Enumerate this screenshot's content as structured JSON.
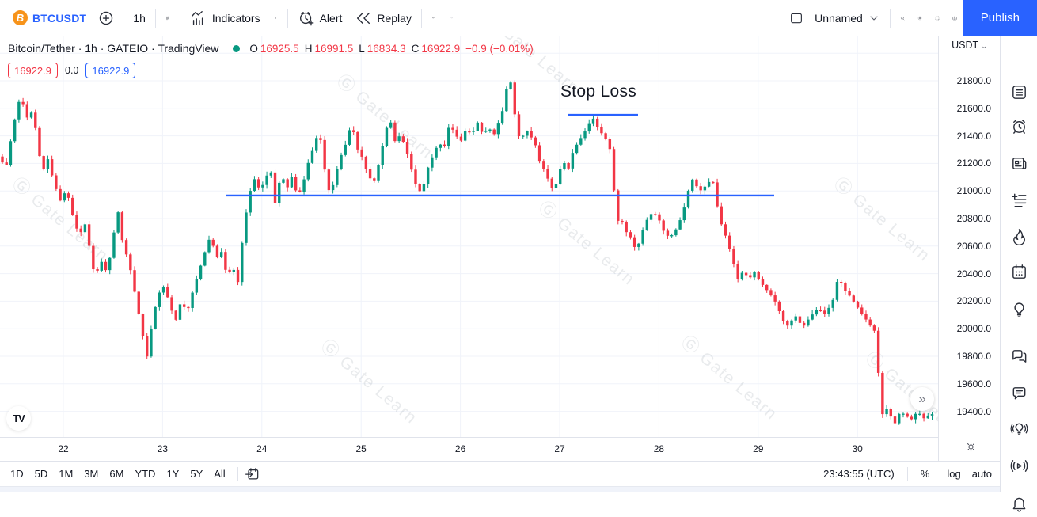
{
  "header": {
    "symbol": "BTCUSDT",
    "interval": "1h",
    "indicators_label": "Indicators",
    "alert_label": "Alert",
    "replay_label": "Replay",
    "layout_name": "Unnamed",
    "publish_label": "Publish",
    "coin_initial": "B"
  },
  "legend": {
    "title": "Bitcoin/Tether · 1h · GATEIO · TradingView",
    "o_label": "O",
    "o": "16925.5",
    "h_label": "H",
    "h": "16991.5",
    "l_label": "L",
    "l": "16834.3",
    "c_label": "C",
    "c": "16922.9",
    "change": "−0.9 (−0.01%)",
    "bid_badge": "16922.9",
    "spread": "0.0",
    "ask_badge": "16922.9"
  },
  "annotation": {
    "stop_loss": "Stop Loss"
  },
  "price_axis": {
    "currency": "USDT"
  },
  "bottom_bar": {
    "ranges": [
      "1D",
      "5D",
      "1M",
      "3M",
      "6M",
      "YTD",
      "1Y",
      "5Y",
      "All"
    ],
    "clock": "23:43:55 (UTC)",
    "percent": "%",
    "log": "log",
    "auto": "auto"
  },
  "sidebar": {
    "icons": [
      "watchlist",
      "alerts",
      "news",
      "text-notes",
      "hotlists",
      "calendar",
      "ideas",
      "chats",
      "private-chat",
      "live-ideas",
      "streams",
      "notifications"
    ],
    "divider_after": "ideas"
  },
  "watermark": {
    "text": "Gate Learn"
  },
  "tv_logo_text": "TV",
  "chart_data": {
    "type": "candlestick",
    "pair": "Bitcoin/Tether",
    "symbol": "BTCUSDT",
    "interval": "1h",
    "exchange": "GATEIO",
    "legend_ohlc": {
      "open": 16925.5,
      "high": 16991.5,
      "low": 16834.3,
      "close": 16922.9,
      "change": -0.9,
      "change_pct": -0.01
    },
    "ylim": [
      19210,
      22110
    ],
    "y_ticks": [
      21800,
      21600,
      21400,
      21200,
      21000,
      20800,
      20600,
      20400,
      20200,
      20000,
      19800,
      19600,
      19400
    ],
    "x_ticks": [
      "22",
      "23",
      "24",
      "25",
      "26",
      "27",
      "28",
      "29",
      "30"
    ],
    "grid": true,
    "colors": {
      "up": "#089981",
      "down": "#f23645",
      "line": "#2962ff",
      "grid": "#f0f3fa"
    },
    "support_line": {
      "price": 20967,
      "x_from": 285,
      "x_to": 978
    },
    "stop_loss_line": {
      "price": 21552,
      "x_from": 717,
      "x_to": 806,
      "label": "Stop Loss"
    },
    "anchors_unit": "x in px (day ticks at x=80+125.4*i), price in USDT",
    "anchors": [
      [
        0,
        21250
      ],
      [
        7,
        21150
      ],
      [
        14,
        21380
      ],
      [
        22,
        21620
      ],
      [
        27,
        21690
      ],
      [
        33,
        21520
      ],
      [
        39,
        21580
      ],
      [
        46,
        21430
      ],
      [
        53,
        21120
      ],
      [
        60,
        21240
      ],
      [
        68,
        21060
      ],
      [
        76,
        20930
      ],
      [
        84,
        21010
      ],
      [
        92,
        20820
      ],
      [
        100,
        20670
      ],
      [
        107,
        20770
      ],
      [
        114,
        20560
      ],
      [
        120,
        20360
      ],
      [
        127,
        20500
      ],
      [
        134,
        20420
      ],
      [
        141,
        20560
      ],
      [
        148,
        20890
      ],
      [
        155,
        20620
      ],
      [
        163,
        20480
      ],
      [
        170,
        20270
      ],
      [
        178,
        20020
      ],
      [
        186,
        19790
      ],
      [
        193,
        20090
      ],
      [
        201,
        20260
      ],
      [
        208,
        20310
      ],
      [
        215,
        20160
      ],
      [
        222,
        20060
      ],
      [
        229,
        20210
      ],
      [
        236,
        20110
      ],
      [
        243,
        20260
      ],
      [
        251,
        20410
      ],
      [
        259,
        20560
      ],
      [
        266,
        20680
      ],
      [
        273,
        20510
      ],
      [
        280,
        20560
      ],
      [
        287,
        20370
      ],
      [
        294,
        20460
      ],
      [
        300,
        20310
      ],
      [
        307,
        20690
      ],
      [
        314,
        20960
      ],
      [
        321,
        21090
      ],
      [
        328,
        21010
      ],
      [
        335,
        21070
      ],
      [
        341,
        21190
      ],
      [
        348,
        20890
      ],
      [
        355,
        21140
      ],
      [
        362,
        21010
      ],
      [
        369,
        21110
      ],
      [
        376,
        20950
      ],
      [
        383,
        21060
      ],
      [
        390,
        21220
      ],
      [
        397,
        21330
      ],
      [
        403,
        21450
      ],
      [
        410,
        21160
      ],
      [
        417,
        20960
      ],
      [
        424,
        21120
      ],
      [
        431,
        21260
      ],
      [
        438,
        21360
      ],
      [
        444,
        21500
      ],
      [
        451,
        21310
      ],
      [
        458,
        21240
      ],
      [
        465,
        21110
      ],
      [
        472,
        21060
      ],
      [
        479,
        21210
      ],
      [
        486,
        21400
      ],
      [
        492,
        21540
      ],
      [
        499,
        21360
      ],
      [
        506,
        21410
      ],
      [
        513,
        21300
      ],
      [
        520,
        21150
      ],
      [
        527,
        21010
      ],
      [
        533,
        20990
      ],
      [
        540,
        21160
      ],
      [
        547,
        21260
      ],
      [
        554,
        21350
      ],
      [
        561,
        21310
      ],
      [
        568,
        21490
      ],
      [
        575,
        21410
      ],
      [
        582,
        21360
      ],
      [
        589,
        21450
      ],
      [
        596,
        21410
      ],
      [
        603,
        21500
      ],
      [
        610,
        21410
      ],
      [
        617,
        21460
      ],
      [
        624,
        21410
      ],
      [
        631,
        21520
      ],
      [
        637,
        21620
      ],
      [
        642,
        21830
      ],
      [
        647,
        21760
      ],
      [
        652,
        21450
      ],
      [
        658,
        21360
      ],
      [
        664,
        21450
      ],
      [
        670,
        21400
      ],
      [
        676,
        21340
      ],
      [
        682,
        21210
      ],
      [
        688,
        21150
      ],
      [
        694,
        21060
      ],
      [
        700,
        20990
      ],
      [
        706,
        21140
      ],
      [
        712,
        21210
      ],
      [
        718,
        21160
      ],
      [
        724,
        21290
      ],
      [
        731,
        21360
      ],
      [
        738,
        21420
      ],
      [
        744,
        21490
      ],
      [
        749,
        21530
      ],
      [
        755,
        21460
      ],
      [
        761,
        21410
      ],
      [
        767,
        21360
      ],
      [
        773,
        21260
      ],
      [
        778,
        20760
      ],
      [
        784,
        20810
      ],
      [
        790,
        20710
      ],
      [
        797,
        20660
      ],
      [
        804,
        20560
      ],
      [
        811,
        20700
      ],
      [
        818,
        20800
      ],
      [
        825,
        20850
      ],
      [
        832,
        20800
      ],
      [
        839,
        20700
      ],
      [
        846,
        20660
      ],
      [
        853,
        20710
      ],
      [
        860,
        20800
      ],
      [
        867,
        20930
      ],
      [
        873,
        21100
      ],
      [
        879,
        21040
      ],
      [
        886,
        21000
      ],
      [
        893,
        21050
      ],
      [
        900,
        21090
      ],
      [
        906,
        20890
      ],
      [
        912,
        20740
      ],
      [
        919,
        20640
      ],
      [
        926,
        20490
      ],
      [
        932,
        20360
      ],
      [
        939,
        20420
      ],
      [
        946,
        20360
      ],
      [
        953,
        20410
      ],
      [
        959,
        20350
      ],
      [
        966,
        20300
      ],
      [
        973,
        20250
      ],
      [
        980,
        20190
      ],
      [
        987,
        20090
      ],
      [
        993,
        20010
      ],
      [
        1000,
        20060
      ],
      [
        1007,
        20100
      ],
      [
        1013,
        20000
      ],
      [
        1020,
        20060
      ],
      [
        1027,
        20110
      ],
      [
        1034,
        20150
      ],
      [
        1041,
        20100
      ],
      [
        1048,
        20160
      ],
      [
        1054,
        20230
      ],
      [
        1059,
        20390
      ],
      [
        1065,
        20290
      ],
      [
        1072,
        20250
      ],
      [
        1078,
        20200
      ],
      [
        1084,
        20150
      ],
      [
        1090,
        20100
      ],
      [
        1096,
        20050
      ],
      [
        1102,
        20000
      ],
      [
        1107,
        19970
      ],
      [
        1112,
        19420
      ],
      [
        1117,
        19350
      ],
      [
        1121,
        19440
      ],
      [
        1126,
        19350
      ],
      [
        1131,
        19310
      ],
      [
        1137,
        19400
      ],
      [
        1144,
        19370
      ],
      [
        1151,
        19340
      ],
      [
        1159,
        19400
      ],
      [
        1167,
        19350
      ],
      [
        1175,
        19380
      ]
    ]
  }
}
